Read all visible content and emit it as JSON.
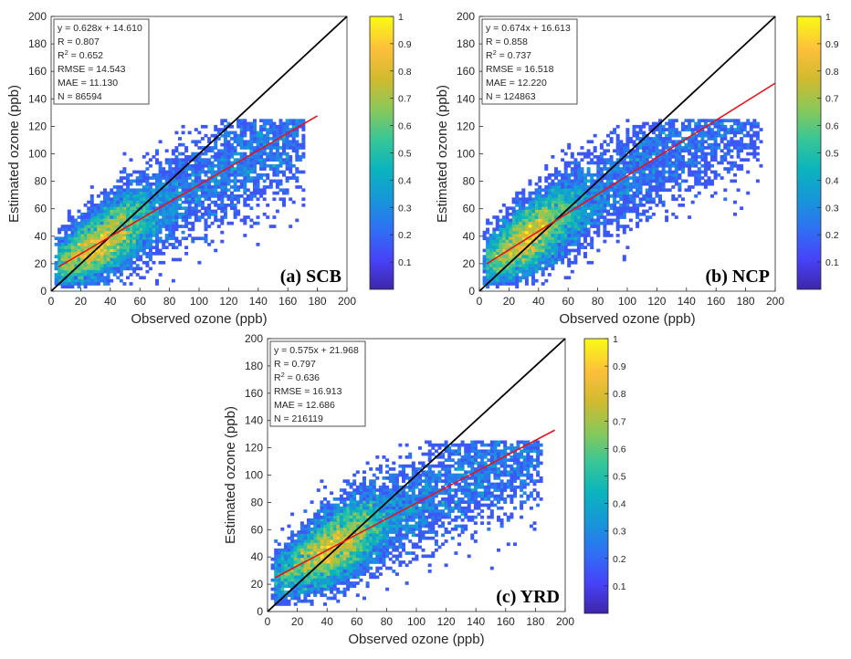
{
  "chart_data": [
    {
      "type": "scatter",
      "subtype": "density-scatter",
      "panel_label": "(a) SCB",
      "xlabel": "Observed ozone (ppb)",
      "ylabel": "Estimated ozone (ppb)",
      "xlim": [
        0,
        200
      ],
      "ylim": [
        0,
        200
      ],
      "xticks": [
        0,
        20,
        40,
        60,
        80,
        100,
        120,
        140,
        160,
        180,
        200
      ],
      "yticks": [
        0,
        20,
        40,
        60,
        80,
        100,
        120,
        140,
        160,
        180,
        200
      ],
      "stats": [
        "y = 0.628x + 14.610",
        "R = 0.807",
        "R2 = 0.652",
        "RMSE = 14.543",
        "MAE = 11.130",
        "N = 86594"
      ],
      "fit": {
        "slope": 0.628,
        "intercept": 14.61,
        "x_range": [
          5,
          180
        ],
        "color": "#e8131b"
      },
      "identity_line": {
        "x_range": [
          0,
          200
        ],
        "color": "#000000"
      },
      "density_peak": [
        35,
        32
      ],
      "colorbar": {
        "min": 0,
        "max": 1,
        "ticks": [
          "0.1",
          "0.2",
          "0.3",
          "0.4",
          "0.5",
          "0.6",
          "0.7",
          "0.8",
          "0.9",
          "1"
        ]
      }
    },
    {
      "type": "scatter",
      "subtype": "density-scatter",
      "panel_label": "(b) NCP",
      "xlabel": "Observed ozone (ppb)",
      "ylabel": "Estimated ozone (ppb)",
      "xlim": [
        0,
        200
      ],
      "ylim": [
        0,
        200
      ],
      "xticks": [
        0,
        20,
        40,
        60,
        80,
        100,
        120,
        140,
        160,
        180,
        200
      ],
      "yticks": [
        0,
        20,
        40,
        60,
        80,
        100,
        120,
        140,
        160,
        180,
        200
      ],
      "stats": [
        "y = 0.674x + 16.613",
        "R = 0.858",
        "R2 = 0.737",
        "RMSE = 16.518",
        "MAE = 12.220",
        "N = 124863"
      ],
      "fit": {
        "slope": 0.674,
        "intercept": 16.613,
        "x_range": [
          5,
          200
        ],
        "color": "#e8131b"
      },
      "identity_line": {
        "x_range": [
          0,
          200
        ],
        "color": "#000000"
      },
      "density_peak": [
        35,
        35
      ],
      "colorbar": {
        "min": 0,
        "max": 1,
        "ticks": [
          "0.1",
          "0.2",
          "0.3",
          "0.4",
          "0.5",
          "0.6",
          "0.7",
          "0.8",
          "0.9",
          "1"
        ]
      }
    },
    {
      "type": "scatter",
      "subtype": "density-scatter",
      "panel_label": "(c) YRD",
      "xlabel": "Observed ozone (ppb)",
      "ylabel": "Estimated ozone (ppb)",
      "xlim": [
        0,
        200
      ],
      "ylim": [
        0,
        200
      ],
      "xticks": [
        0,
        20,
        40,
        60,
        80,
        100,
        120,
        140,
        160,
        180,
        200
      ],
      "yticks": [
        0,
        20,
        40,
        60,
        80,
        100,
        120,
        140,
        160,
        180,
        200
      ],
      "stats": [
        "y = 0.575x + 21.968",
        "R = 0.797",
        "R2 = 0.636",
        "RMSE = 16.913",
        "MAE = 12.686",
        "N = 216119"
      ],
      "fit": {
        "slope": 0.575,
        "intercept": 21.968,
        "x_range": [
          5,
          193
        ],
        "color": "#e8131b"
      },
      "identity_line": {
        "x_range": [
          0,
          200
        ],
        "color": "#000000"
      },
      "density_peak": [
        45,
        47
      ],
      "colorbar": {
        "min": 0,
        "max": 1,
        "ticks": [
          "0.1",
          "0.2",
          "0.3",
          "0.4",
          "0.5",
          "0.6",
          "0.7",
          "0.8",
          "0.9",
          "1"
        ]
      }
    }
  ],
  "colormap": [
    "#3e26a8",
    "#4743f8",
    "#2f70f4",
    "#1796d9",
    "#0ab4bd",
    "#38c697",
    "#8ac859",
    "#d0ba2f",
    "#fdbf3b",
    "#f9fb15"
  ]
}
